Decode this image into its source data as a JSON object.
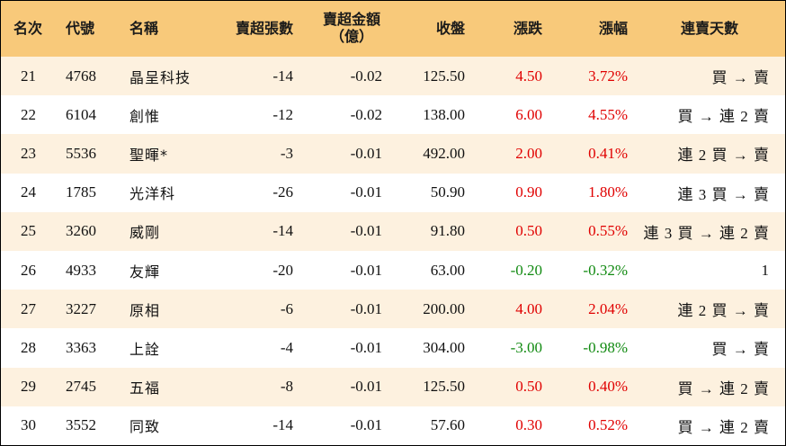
{
  "header": {
    "rank": "名次",
    "code": "代號",
    "name": "名稱",
    "net_sell_lots": "賣超張數",
    "net_sell_amount_line1": "賣超金額",
    "net_sell_amount_line2": "（億）",
    "close": "收盤",
    "change": "漲跌",
    "change_pct": "漲幅",
    "streak": "連賣天數"
  },
  "colors": {
    "header_bg": "#f8c97a",
    "alt_row_bg": "#fdf1df",
    "up": "#e00000",
    "down": "#118a11"
  },
  "rows": [
    {
      "rank": "21",
      "code": "4768",
      "name": "晶呈科技",
      "net_sell_lots": "-14",
      "net_sell_amount": "-0.02",
      "close": "125.50",
      "change": "4.50",
      "change_pct": "3.72%",
      "streak": "買 → 賣",
      "dir": "up"
    },
    {
      "rank": "22",
      "code": "6104",
      "name": "創惟",
      "net_sell_lots": "-12",
      "net_sell_amount": "-0.02",
      "close": "138.00",
      "change": "6.00",
      "change_pct": "4.55%",
      "streak": "買 → 連 2 賣",
      "dir": "up"
    },
    {
      "rank": "23",
      "code": "5536",
      "name": "聖暉*",
      "net_sell_lots": "-3",
      "net_sell_amount": "-0.01",
      "close": "492.00",
      "change": "2.00",
      "change_pct": "0.41%",
      "streak": "連 2 買 → 賣",
      "dir": "up"
    },
    {
      "rank": "24",
      "code": "1785",
      "name": "光洋科",
      "net_sell_lots": "-26",
      "net_sell_amount": "-0.01",
      "close": "50.90",
      "change": "0.90",
      "change_pct": "1.80%",
      "streak": "連 3 買 → 賣",
      "dir": "up"
    },
    {
      "rank": "25",
      "code": "3260",
      "name": "威剛",
      "net_sell_lots": "-14",
      "net_sell_amount": "-0.01",
      "close": "91.80",
      "change": "0.50",
      "change_pct": "0.55%",
      "streak": "連 3 買 → 連 2 賣",
      "dir": "up"
    },
    {
      "rank": "26",
      "code": "4933",
      "name": "友輝",
      "net_sell_lots": "-20",
      "net_sell_amount": "-0.01",
      "close": "63.00",
      "change": "-0.20",
      "change_pct": "-0.32%",
      "streak": "1",
      "dir": "down"
    },
    {
      "rank": "27",
      "code": "3227",
      "name": "原相",
      "net_sell_lots": "-6",
      "net_sell_amount": "-0.01",
      "close": "200.00",
      "change": "4.00",
      "change_pct": "2.04%",
      "streak": "連 2 買 → 賣",
      "dir": "up"
    },
    {
      "rank": "28",
      "code": "3363",
      "name": "上詮",
      "net_sell_lots": "-4",
      "net_sell_amount": "-0.01",
      "close": "304.00",
      "change": "-3.00",
      "change_pct": "-0.98%",
      "streak": "買 → 賣",
      "dir": "down"
    },
    {
      "rank": "29",
      "code": "2745",
      "name": "五福",
      "net_sell_lots": "-8",
      "net_sell_amount": "-0.01",
      "close": "125.50",
      "change": "0.50",
      "change_pct": "0.40%",
      "streak": "買 → 連 2 賣",
      "dir": "up"
    },
    {
      "rank": "30",
      "code": "3552",
      "name": "同致",
      "net_sell_lots": "-14",
      "net_sell_amount": "-0.01",
      "close": "57.60",
      "change": "0.30",
      "change_pct": "0.52%",
      "streak": "買 → 連 2 賣",
      "dir": "up"
    }
  ]
}
